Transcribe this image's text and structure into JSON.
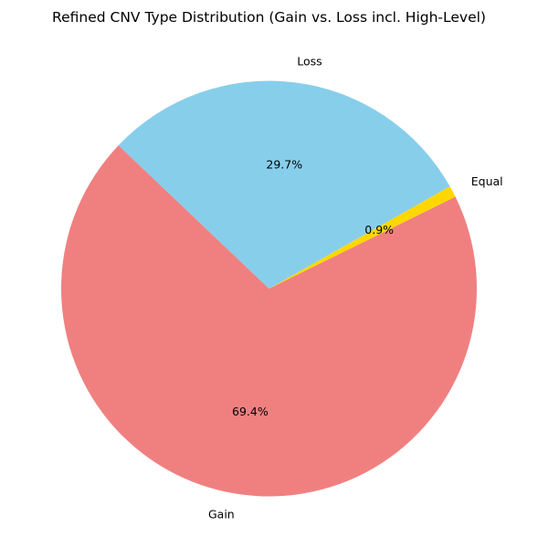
{
  "chart_data": {
    "type": "pie",
    "title": "Refined CNV Type Distribution (Gain vs. Loss incl. High-Level)",
    "categories": [
      "Gain",
      "Equal",
      "Loss"
    ],
    "values": [
      69.4,
      0.9,
      29.7
    ],
    "percent_labels": [
      "69.4%",
      "0.9%",
      "29.7%"
    ],
    "colors": [
      "#f08080",
      "#ffd700",
      "#87ceeb"
    ],
    "start_angle": 0,
    "direction": "counterclockwise",
    "legend": "none"
  }
}
